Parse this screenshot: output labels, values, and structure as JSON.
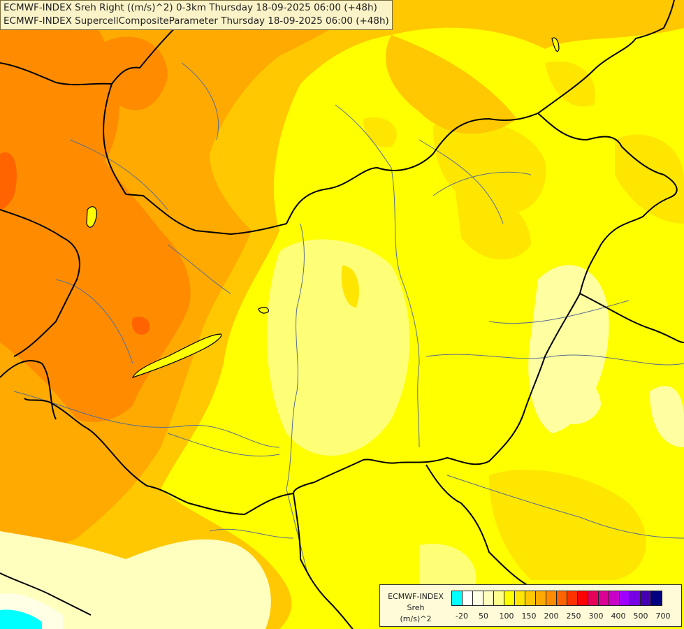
{
  "title": {
    "line1": "ECMWF-INDEX Sreh Right ((m/s)^2) 0-3km Thursday 18-09-2025 06:00 (+48h)",
    "line2": "ECMWF-INDEX SupercellCompositeParameter Thursday 18-09-2025 06:00 (+48h)"
  },
  "legend": {
    "line1": "ECMWF-INDEX",
    "line2": "Sreh",
    "line3": "(m/s)^2",
    "colors": [
      "#00ffff",
      "#ffffff",
      "#ffffe6",
      "#ffffbe",
      "#ffff8c",
      "#ffff00",
      "#ffe600",
      "#ffc800",
      "#ffaa00",
      "#ff8c00",
      "#ff6400",
      "#ff3200",
      "#ff0000",
      "#e6005a",
      "#dc0096",
      "#c800c8",
      "#a000ff",
      "#7800e6",
      "#4600b4",
      "#000080"
    ],
    "ticks": [
      "-20",
      "50",
      "100",
      "150",
      "200",
      "250",
      "300",
      "400",
      "500",
      "700"
    ]
  },
  "map": {
    "region": "Hungary and surroundings",
    "field": "Sreh 0-3km",
    "colors": {
      "background": "#ffff00",
      "orange_dark": "#ff8c00",
      "orange": "#ffaa00",
      "orange_light": "#ffc800",
      "yellow_deep": "#ffe600",
      "pale_yellow": "#ffff8c",
      "cream": "#ffffbe",
      "cyan": "#00ffff",
      "red_orange": "#ff6400",
      "border": "#000000",
      "river": "#5a6e8c"
    }
  }
}
